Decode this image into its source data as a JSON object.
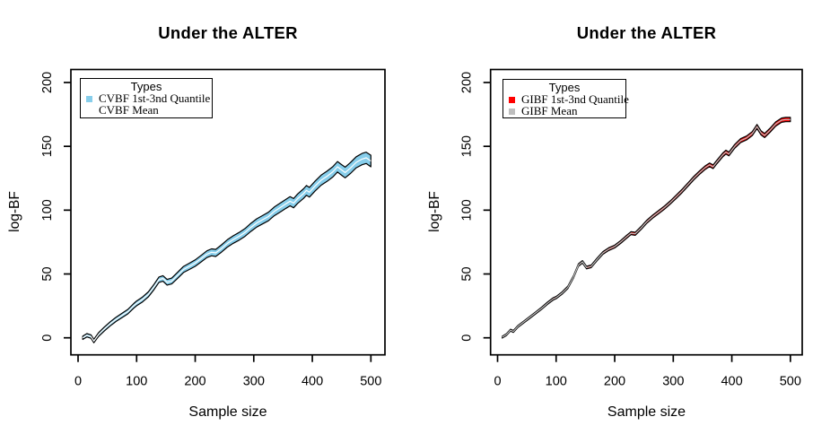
{
  "chart_data": [
    {
      "type": "area",
      "title": "Under the ALTER",
      "xlabel": "Sample size",
      "ylabel": "log-BF",
      "xlim": [
        0,
        500
      ],
      "ylim": [
        0,
        200
      ],
      "xticks": [
        0,
        100,
        200,
        300,
        400,
        500
      ],
      "yticks": [
        0,
        50,
        100,
        150,
        200
      ],
      "grid": "off",
      "legend_position": "top-left",
      "legend_title": "Types",
      "series": [
        {
          "name": "CVBF 1st-3nd Quantile",
          "kind": "quantile-band",
          "fill": "#87CEEB",
          "outline": "#000000"
        },
        {
          "name": "CVBF Mean",
          "kind": "line",
          "color": "#FFFFFF"
        }
      ],
      "x": [
        8,
        15,
        22,
        27,
        35,
        45,
        55,
        65,
        75,
        85,
        95,
        100,
        110,
        120,
        130,
        138,
        145,
        152,
        160,
        170,
        180,
        190,
        200,
        210,
        220,
        228,
        235,
        245,
        255,
        265,
        275,
        285,
        295,
        305,
        315,
        325,
        335,
        345,
        355,
        362,
        368,
        375,
        385,
        390,
        395,
        405,
        415,
        425,
        435,
        443,
        450,
        456,
        465,
        475,
        485,
        492,
        500
      ],
      "mean": [
        0,
        2,
        1,
        -2.5,
        2.5,
        7,
        11,
        14.5,
        17.5,
        20.5,
        25,
        27,
        30,
        34,
        40,
        45.5,
        46.5,
        43.5,
        44.5,
        49,
        53.5,
        56,
        58.5,
        62,
        65.5,
        67,
        66.5,
        70,
        74,
        77,
        79.5,
        82.5,
        86.5,
        90,
        92.5,
        95,
        99,
        102,
        105,
        107,
        105.5,
        109,
        113,
        115.5,
        114,
        119,
        123.5,
        126.5,
        130,
        134,
        131.5,
        129.5,
        133,
        137.5,
        140,
        141,
        138.5
      ],
      "half_width": [
        1.25,
        1.3,
        1.35,
        1.38,
        1.43,
        1.5,
        1.56,
        1.63,
        1.7,
        1.76,
        1.83,
        1.86,
        1.93,
        1.99,
        2.06,
        2.11,
        2.16,
        2.2,
        2.26,
        2.32,
        2.39,
        2.45,
        2.52,
        2.59,
        2.65,
        2.7,
        2.75,
        2.82,
        2.88,
        2.95,
        3.02,
        3.08,
        3.15,
        3.21,
        3.28,
        3.35,
        3.41,
        3.48,
        3.54,
        3.59,
        3.63,
        3.68,
        3.74,
        3.77,
        3.81,
        3.87,
        3.94,
        4.01,
        4.07,
        4.12,
        4.17,
        4.21,
        4.27,
        4.34,
        4.4,
        4.45,
        4.5
      ]
    },
    {
      "type": "area",
      "title": "Under the ALTER",
      "xlabel": "Sample size",
      "ylabel": "log-BF",
      "xlim": [
        0,
        500
      ],
      "ylim": [
        0,
        200
      ],
      "xticks": [
        0,
        100,
        200,
        300,
        400,
        500
      ],
      "yticks": [
        0,
        50,
        100,
        150,
        200
      ],
      "grid": "off",
      "legend_position": "top-left",
      "legend_title": "Types",
      "series": [
        {
          "name": "GIBF 1st-3nd Quantile",
          "kind": "quantile-band",
          "fill": "#FF0000",
          "outline": "#000000"
        },
        {
          "name": "GIBF Mean",
          "kind": "line",
          "color": "#BEBEBE"
        }
      ],
      "x": [
        8,
        15,
        22,
        27,
        35,
        45,
        55,
        65,
        75,
        85,
        95,
        100,
        110,
        120,
        130,
        138,
        145,
        152,
        160,
        170,
        180,
        190,
        200,
        210,
        220,
        228,
        235,
        245,
        255,
        265,
        275,
        285,
        295,
        305,
        315,
        325,
        335,
        345,
        355,
        362,
        368,
        375,
        385,
        390,
        395,
        405,
        415,
        425,
        435,
        443,
        450,
        456,
        465,
        475,
        485,
        492,
        500
      ],
      "mean": [
        0.5,
        2.5,
        6,
        5,
        9,
        12.5,
        16,
        19.5,
        23,
        27,
        30.5,
        31.5,
        35,
        39.5,
        48,
        57,
        59.5,
        55,
        56,
        61.5,
        66.5,
        69.5,
        71.5,
        75,
        79,
        82,
        81.5,
        86,
        91,
        95,
        98.5,
        102,
        106,
        110.5,
        115,
        120,
        125,
        129.5,
        133.5,
        135.5,
        134,
        138,
        143.5,
        145.5,
        144,
        150,
        154.5,
        156.5,
        160,
        165.5,
        160.5,
        158.5,
        162.5,
        167.5,
        170.5,
        171,
        171
      ],
      "half_width": [
        0.72,
        0.73,
        0.74,
        0.75,
        0.77,
        0.79,
        0.81,
        0.83,
        0.85,
        0.87,
        0.89,
        0.9,
        0.92,
        0.94,
        0.96,
        0.98,
        0.99,
        1.0,
        1.02,
        1.04,
        1.06,
        1.08,
        1.1,
        1.12,
        1.14,
        1.16,
        1.17,
        1.19,
        1.21,
        1.23,
        1.25,
        1.27,
        1.29,
        1.31,
        1.33,
        1.35,
        1.37,
        1.39,
        1.41,
        1.42,
        1.44,
        1.45,
        1.47,
        1.48,
        1.49,
        1.51,
        1.53,
        1.55,
        1.57,
        1.59,
        1.6,
        1.61,
        1.63,
        1.65,
        1.67,
        1.68,
        1.7
      ]
    }
  ]
}
